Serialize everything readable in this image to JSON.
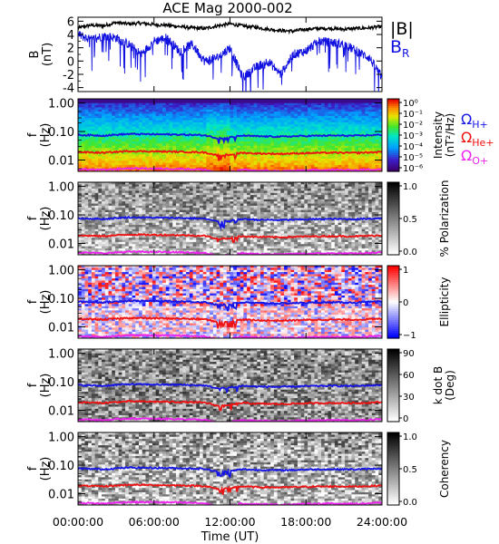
{
  "chart_data": {
    "type": "spectrogram",
    "title": "ACE Mag 2000-002",
    "xlabel": "Time (UT)",
    "x_ticks": [
      "00:00:00",
      "06:00:00",
      "12:00:00",
      "18:00:00",
      "24:00:00"
    ],
    "x_range_hours": [
      0,
      24
    ],
    "freq_ticks": [
      "1.00",
      "0.10",
      "0.01"
    ],
    "freq_range_hz": [
      0.004,
      1.4
    ],
    "freq_axis_scale": "log",
    "ylabel_f": "f",
    "ylabel_unit": "(Hz)",
    "panels": [
      {
        "id": "mag",
        "type": "line",
        "ylabel": "B",
        "yunit": "(nT)",
        "y_ticks": [
          6,
          4,
          2,
          0,
          -2,
          -4
        ],
        "ylim": [
          -4.6,
          6.6
        ],
        "series": [
          {
            "name": "|B|",
            "color": "#000000",
            "t": [
              0,
              1,
              2,
              3,
              4,
              5,
              6,
              7,
              8,
              9,
              10,
              11,
              12,
              13,
              14,
              15,
              16,
              17,
              18,
              19,
              20,
              21,
              22,
              23,
              24
            ],
            "values": [
              5.0,
              5.4,
              5.3,
              5.8,
              5.6,
              5.7,
              5.5,
              5.4,
              5.2,
              5.0,
              4.9,
              5.3,
              5.6,
              5.3,
              5.1,
              4.8,
              4.6,
              4.5,
              4.8,
              4.9,
              4.9,
              4.8,
              4.9,
              5.0,
              5.2
            ]
          },
          {
            "name": "B_R",
            "color": "#1010e0",
            "t": [
              0,
              1,
              2,
              3,
              4,
              5,
              6,
              7,
              8,
              9,
              10,
              11,
              12,
              13,
              14,
              15,
              16,
              17,
              18,
              19,
              20,
              21,
              22,
              23,
              24
            ],
            "values": [
              4.0,
              3.2,
              3.8,
              3.5,
              2.5,
              1.0,
              3.0,
              3.5,
              1.5,
              2.5,
              0.0,
              0.5,
              2.0,
              -2.5,
              -1.0,
              0.0,
              -2.0,
              1.0,
              1.5,
              3.0,
              2.8,
              2.5,
              1.5,
              0.5,
              -2.5
            ]
          }
        ],
        "legend": [
          "|B|",
          "B_R"
        ]
      },
      {
        "id": "intensity",
        "colorbar_label": "Intensity",
        "colorbar_unit": "(nT²/Hz)",
        "colorbar_ticks": [
          "10⁰",
          "10⁻¹",
          "10⁻²",
          "10⁻³",
          "10⁻⁴",
          "10⁻⁵",
          "10⁻⁶"
        ],
        "colormap": "rainbow"
      },
      {
        "id": "polarization",
        "colorbar_label": "% Polarization",
        "colorbar_ticks": [
          "1.0",
          "0.5",
          "0.0"
        ],
        "colormap": "gray"
      },
      {
        "id": "ellipticity",
        "colorbar_label": "Ellipticity",
        "colorbar_ticks": [
          "1",
          "0",
          "−1"
        ],
        "colormap": "blue-white-red"
      },
      {
        "id": "kdotb",
        "colorbar_label": "k dot B",
        "colorbar_unit": "(Deg)",
        "colorbar_ticks": [
          "90",
          "60",
          "30",
          "0"
        ],
        "colormap": "gray"
      },
      {
        "id": "coherency",
        "colorbar_label": "Coherency",
        "colorbar_ticks": [
          "1.0",
          "0.5",
          "0.0"
        ],
        "colormap": "gray"
      }
    ],
    "gyrofrequency_lines": [
      {
        "name": "Ω_H+",
        "symbol": "Ω",
        "sub": "H+",
        "color": "#1414e6",
        "t": [
          0,
          2,
          4,
          6,
          8,
          10,
          11,
          12,
          13,
          14,
          16,
          18,
          20,
          22,
          24
        ],
        "freq_hz": [
          0.076,
          0.072,
          0.082,
          0.08,
          0.078,
          0.074,
          0.058,
          0.062,
          0.072,
          0.068,
          0.066,
          0.07,
          0.072,
          0.071,
          0.077
        ]
      },
      {
        "name": "Ω_He+",
        "symbol": "Ω",
        "sub": "He+",
        "color": "#ee1111",
        "t": [
          0,
          2,
          4,
          6,
          8,
          10,
          11,
          12,
          13,
          14,
          16,
          18,
          20,
          22,
          24
        ],
        "freq_hz": [
          0.019,
          0.018,
          0.0205,
          0.02,
          0.0195,
          0.0185,
          0.0145,
          0.0155,
          0.018,
          0.017,
          0.0165,
          0.0175,
          0.018,
          0.0178,
          0.0192
        ]
      },
      {
        "name": "Ω_O+",
        "symbol": "Ω",
        "sub": "O+",
        "color": "#ee22ee",
        "t": [
          0,
          2,
          4,
          6,
          8,
          10,
          11,
          12,
          13,
          14,
          16,
          18,
          20,
          22,
          24
        ],
        "freq_hz": [
          0.0048,
          0.0045,
          0.0051,
          0.005,
          0.0049,
          0.0046,
          0.0036,
          0.0039,
          0.0045,
          0.0043,
          0.0041,
          0.0044,
          0.0045,
          0.0044,
          0.0048
        ]
      }
    ]
  }
}
